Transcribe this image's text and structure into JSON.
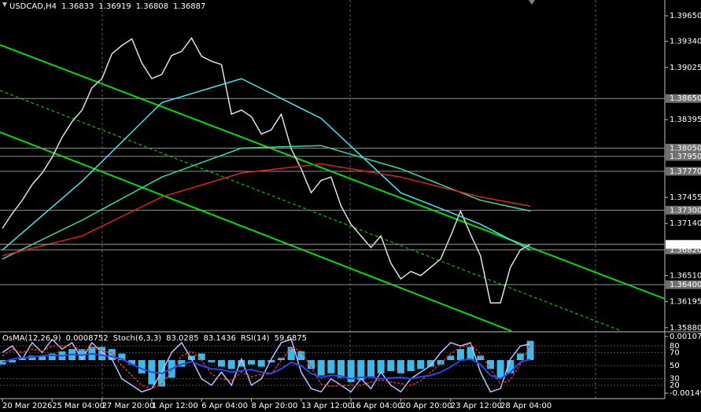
{
  "chart_data": [
    {
      "type": "line",
      "title": "USDCAD,H4",
      "ohlc": [
        1.36833,
        1.36919,
        1.36808,
        1.36887
      ],
      "x": [
        0,
        3,
        6,
        9,
        12,
        15,
        18,
        21,
        24,
        27,
        30,
        33,
        36,
        39,
        42,
        45,
        48,
        51,
        54,
        57,
        60,
        63,
        66,
        69,
        72,
        75,
        78,
        81,
        84,
        87,
        90,
        93,
        96,
        99,
        102,
        105,
        108,
        111,
        114,
        117,
        120,
        123,
        126,
        129,
        132,
        135,
        138,
        141,
        144,
        147,
        150,
        153,
        156,
        159
      ],
      "xlim": [
        -0.7,
        199.5
      ],
      "xticks": [
        {
          "value": 0,
          "label": "20 Mar 2026"
        },
        {
          "value": 15,
          "label": "25 Mar 04:00"
        },
        {
          "value": 30,
          "label": "27 Mar 20:00"
        },
        {
          "value": 45,
          "label": "1 Apr 12:00"
        },
        {
          "value": 60,
          "label": "6 Apr 04:00"
        },
        {
          "value": 75,
          "label": "8 Apr 20:00"
        },
        {
          "value": 90,
          "label": "13 Apr 12:00"
        },
        {
          "value": 105,
          "label": "16 Apr 04:00"
        },
        {
          "value": 120,
          "label": "20 Apr 20:00"
        },
        {
          "value": 135,
          "label": "23 Apr 12:00"
        },
        {
          "value": 150,
          "label": "28 Apr 04:00"
        }
      ],
      "ylim": [
        1.3584,
        1.3984
      ],
      "yticks": [
        {
          "value": 1.3965,
          "label": "1.39650"
        },
        {
          "value": 1.3934,
          "label": "1.39340"
        },
        {
          "value": 1.39025,
          "label": "1.39025"
        },
        {
          "value": 1.38395,
          "label": "1.38395"
        },
        {
          "value": 1.37455,
          "label": "1.37455"
        },
        {
          "value": 1.3714,
          "label": "1.37140"
        },
        {
          "value": 1.3651,
          "label": "1.36510"
        },
        {
          "value": 1.36195,
          "label": "1.36195"
        },
        {
          "value": 1.3588,
          "label": "1.35880"
        }
      ],
      "levels": [
        {
          "value": 1.3865,
          "label": "1.38650"
        },
        {
          "value": 1.3805,
          "label": "1.38050"
        },
        {
          "value": 1.3795,
          "label": "1.37950"
        },
        {
          "value": 1.3777,
          "label": "1.37770"
        },
        {
          "value": 1.373,
          "label": "1.37300"
        },
        {
          "value": 1.3682,
          "label": "1.36820"
        },
        {
          "value": 1.364,
          "label": "1.36400"
        }
      ],
      "series": [
        {
          "color": "#e0e0e0",
          "values": [
            1.3708,
            1.3726,
            1.3742,
            1.3761,
            1.3775,
            1.3794,
            1.3818,
            1.3837,
            1.3851,
            1.3878,
            1.3889,
            1.3919,
            1.3929,
            1.3937,
            1.3908,
            1.3889,
            1.3894,
            1.3917,
            1.3922,
            1.3938,
            1.3916,
            1.391,
            1.3906,
            1.3846,
            1.3851,
            1.3843,
            1.3822,
            1.3827,
            1.3846,
            1.3804,
            1.378,
            1.3751,
            1.3766,
            1.377,
            1.3735,
            1.3713,
            1.3699,
            1.3685,
            1.3699,
            1.3666,
            1.3647,
            1.3656,
            1.3651,
            1.3661,
            1.3671,
            1.3699,
            1.3729,
            1.3701,
            1.3675,
            1.3618,
            1.3618,
            1.3661,
            1.3682,
            1.36887
          ]
        },
        {
          "color": "#40e8f0",
          "x": [
            0,
            24,
            48,
            72,
            96,
            120,
            144,
            159
          ],
          "values": [
            1.3682,
            1.3765,
            1.386,
            1.3889,
            1.3841,
            1.3751,
            1.3713,
            1.3682
          ]
        },
        {
          "color": "#30e0a0",
          "x": [
            0,
            24,
            48,
            72,
            96,
            120,
            144,
            159
          ],
          "values": [
            1.3671,
            1.3718,
            1.377,
            1.3805,
            1.3808,
            1.378,
            1.3742,
            1.3729
          ]
        },
        {
          "color": "#e02020",
          "x": [
            0,
            24,
            48,
            72,
            96,
            120,
            144,
            159
          ],
          "values": [
            1.3675,
            1.3699,
            1.3746,
            1.3775,
            1.3786,
            1.377,
            1.3746,
            1.3735
          ]
        }
      ]
    },
    {
      "type": "combo",
      "ylim": [
        -0.001499,
        0.001071
      ],
      "yticks": [
        0.001071,
        -0.001499
      ],
      "y2lim": [
        0,
        100
      ],
      "y2ticks": [
        80,
        70,
        50,
        30,
        20
      ],
      "series": [
        {
          "name": "OsMA(12,26,9)",
          "type": "bar",
          "color": "#40b8e8",
          "values": [
            -0.0002,
            -0.0001,
            0.0001,
            0.0002,
            0.0002,
            0.0003,
            0.0004,
            0.0005,
            0.0005,
            0.0006,
            0.0006,
            0.0005,
            0.0003,
            -0.0002,
            -0.0006,
            -0.0011,
            -0.0012,
            -0.0008,
            -0.0003,
            0.0002,
            0.0003,
            -0.0001,
            -0.0003,
            -0.0004,
            -0.0003,
            -0.0002,
            -0.0003,
            -0.0001,
            0.0001,
            0.0006,
            0.0004,
            -0.0004,
            -0.0007,
            -0.0006,
            -0.0008,
            -0.001,
            -0.0009,
            -0.0008,
            -0.0006,
            -0.0005,
            -0.0006,
            -0.0005,
            -0.0004,
            -0.0003,
            -0.0002,
            0.0002,
            0.0005,
            0.0006,
            0.0002,
            -0.0004,
            -0.0008,
            -0.0006,
            0.0003,
            0.0008752
          ]
        },
        {
          "name": "Stoch(6,3,3)",
          "type": "line",
          "axis": "y2",
          "color": "#b8c0ff",
          "values": [
            70,
            80,
            60,
            85,
            70,
            90,
            75,
            85,
            60,
            85,
            70,
            60,
            30,
            20,
            10,
            15,
            40,
            70,
            85,
            60,
            30,
            20,
            40,
            20,
            60,
            20,
            30,
            60,
            85,
            90,
            40,
            15,
            10,
            30,
            20,
            10,
            30,
            15,
            40,
            20,
            10,
            30,
            40,
            50,
            70,
            85,
            80,
            85,
            40,
            10,
            15,
            60,
            80,
            83.0285
          ]
        },
        {
          "type": "line",
          "axis": "y2",
          "color": "#e03030",
          "dash": true,
          "values": [
            65,
            75,
            70,
            75,
            72,
            80,
            80,
            80,
            73,
            77,
            72,
            70,
            50,
            35,
            20,
            15,
            22,
            42,
            65,
            72,
            58,
            37,
            30,
            27,
            40,
            33,
            37,
            37,
            58,
            78,
            72,
            48,
            22,
            18,
            20,
            20,
            20,
            25,
            28,
            25,
            23,
            20,
            27,
            40,
            53,
            68,
            78,
            83,
            68,
            45,
            22,
            28,
            52,
            83.1436
          ]
        },
        {
          "name": "RSI(14)",
          "type": "line",
          "axis": "y2",
          "color": "#2848e8",
          "width": 2,
          "values": [
            55,
            60,
            62,
            63,
            65,
            66,
            65,
            67,
            66,
            68,
            66,
            64,
            60,
            52,
            45,
            40,
            38,
            45,
            52,
            56,
            50,
            45,
            44,
            40,
            42,
            44,
            40,
            38,
            45,
            55,
            50,
            38,
            32,
            35,
            34,
            30,
            32,
            33,
            30,
            31,
            32,
            30,
            33,
            35,
            40,
            48,
            58,
            60,
            52,
            35,
            30,
            40,
            55,
            59.6875
          ]
        }
      ]
    }
  ]
}
